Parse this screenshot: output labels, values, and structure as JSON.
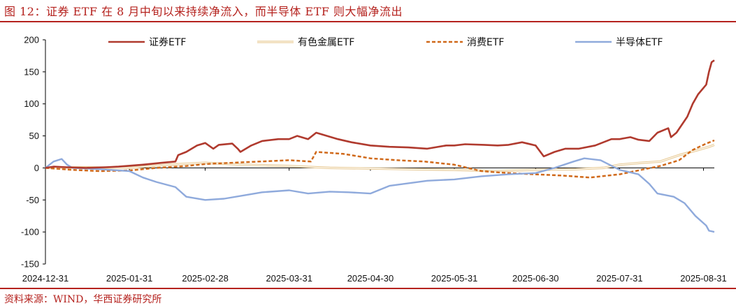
{
  "header": {
    "title": "图 12：证券 ETF 在 8 月中旬以来持续净流入，而半导体 ETF 则大幅净流出"
  },
  "footer": {
    "source": "资料来源：WIND，华西证券研究所"
  },
  "colors": {
    "accent": "#b5221e",
    "securities": "#b03a2e",
    "nonferrous": "#e8c992",
    "consumer": "#d0691a",
    "semiconductor": "#8faadc"
  },
  "chart_data": {
    "type": "line",
    "title": "",
    "xlabel": "",
    "ylabel": "",
    "ylim": [
      -150,
      200
    ],
    "yticks": [
      -150,
      -100,
      -50,
      0,
      50,
      100,
      150,
      200
    ],
    "ytick_labels": [
      "-150",
      "-100",
      "-50",
      "0",
      "50",
      "100",
      "150",
      "200"
    ],
    "xlim": [
      "2024-12-31",
      "2025-09-04"
    ],
    "xticks": [
      "2024-12-31",
      "2025-01-31",
      "2025-02-28",
      "2025-03-31",
      "2025-04-30",
      "2025-05-31",
      "2025-06-30",
      "2025-07-31",
      "2025-08-31"
    ],
    "grid": false,
    "legend_position": "top",
    "series": [
      {
        "name": "证券ETF",
        "style": "solid",
        "points": [
          [
            "2024-12-31",
            0
          ],
          [
            "2025-01-03",
            2
          ],
          [
            "2025-01-08",
            1
          ],
          [
            "2025-01-15",
            0
          ],
          [
            "2025-01-22",
            1
          ],
          [
            "2025-01-27",
            2
          ],
          [
            "2025-02-05",
            5
          ],
          [
            "2025-02-12",
            8
          ],
          [
            "2025-02-17",
            10
          ],
          [
            "2025-02-18",
            20
          ],
          [
            "2025-02-21",
            25
          ],
          [
            "2025-02-25",
            35
          ],
          [
            "2025-02-28",
            39
          ],
          [
            "2025-03-03",
            30
          ],
          [
            "2025-03-05",
            36
          ],
          [
            "2025-03-10",
            38
          ],
          [
            "2025-03-12",
            30
          ],
          [
            "2025-03-13",
            25
          ],
          [
            "2025-03-17",
            35
          ],
          [
            "2025-03-21",
            42
          ],
          [
            "2025-03-27",
            45
          ],
          [
            "2025-03-31",
            45
          ],
          [
            "2025-04-03",
            50
          ],
          [
            "2025-04-07",
            45
          ],
          [
            "2025-04-10",
            55
          ],
          [
            "2025-04-14",
            50
          ],
          [
            "2025-04-18",
            45
          ],
          [
            "2025-04-23",
            40
          ],
          [
            "2025-04-30",
            35
          ],
          [
            "2025-05-07",
            33
          ],
          [
            "2025-05-14",
            32
          ],
          [
            "2025-05-21",
            30
          ],
          [
            "2025-05-28",
            35
          ],
          [
            "2025-05-31",
            35
          ],
          [
            "2025-06-04",
            37
          ],
          [
            "2025-06-11",
            36
          ],
          [
            "2025-06-16",
            35
          ],
          [
            "2025-06-20",
            36
          ],
          [
            "2025-06-25",
            40
          ],
          [
            "2025-06-30",
            35
          ],
          [
            "2025-07-03",
            18
          ],
          [
            "2025-07-07",
            25
          ],
          [
            "2025-07-11",
            30
          ],
          [
            "2025-07-16",
            30
          ],
          [
            "2025-07-22",
            35
          ],
          [
            "2025-07-28",
            45
          ],
          [
            "2025-07-31",
            45
          ],
          [
            "2025-08-04",
            48
          ],
          [
            "2025-08-07",
            44
          ],
          [
            "2025-08-11",
            42
          ],
          [
            "2025-08-14",
            55
          ],
          [
            "2025-08-18",
            62
          ],
          [
            "2025-08-19",
            48
          ],
          [
            "2025-08-21",
            55
          ],
          [
            "2025-08-25",
            80
          ],
          [
            "2025-08-27",
            100
          ],
          [
            "2025-08-29",
            115
          ],
          [
            "2025-09-01",
            130
          ],
          [
            "2025-09-02",
            150
          ],
          [
            "2025-09-03",
            165
          ],
          [
            "2025-09-04",
            168
          ]
        ]
      },
      {
        "name": "有色金属ETF",
        "style": "double",
        "points": [
          [
            "2024-12-31",
            0
          ],
          [
            "2025-01-15",
            1
          ],
          [
            "2025-01-31",
            0
          ],
          [
            "2025-02-14",
            5
          ],
          [
            "2025-02-28",
            8
          ],
          [
            "2025-03-14",
            5
          ],
          [
            "2025-03-31",
            3
          ],
          [
            "2025-04-15",
            0
          ],
          [
            "2025-04-30",
            -1
          ],
          [
            "2025-05-15",
            -2
          ],
          [
            "2025-05-31",
            -3
          ],
          [
            "2025-06-15",
            -5
          ],
          [
            "2025-06-30",
            -3
          ],
          [
            "2025-07-15",
            -2
          ],
          [
            "2025-07-25",
            0
          ],
          [
            "2025-07-31",
            5
          ],
          [
            "2025-08-08",
            8
          ],
          [
            "2025-08-15",
            10
          ],
          [
            "2025-08-22",
            20
          ],
          [
            "2025-08-29",
            28
          ],
          [
            "2025-09-02",
            33
          ],
          [
            "2025-09-04",
            36
          ]
        ]
      },
      {
        "name": "消费ETF",
        "style": "dashed",
        "points": [
          [
            "2024-12-31",
            0
          ],
          [
            "2025-01-10",
            -3
          ],
          [
            "2025-01-20",
            -5
          ],
          [
            "2025-01-31",
            -4
          ],
          [
            "2025-02-10",
            0
          ],
          [
            "2025-02-21",
            3
          ],
          [
            "2025-02-28",
            6
          ],
          [
            "2025-03-10",
            8
          ],
          [
            "2025-03-20",
            10
          ],
          [
            "2025-03-31",
            12
          ],
          [
            "2025-04-08",
            10
          ],
          [
            "2025-04-10",
            25
          ],
          [
            "2025-04-20",
            22
          ],
          [
            "2025-04-30",
            15
          ],
          [
            "2025-05-10",
            12
          ],
          [
            "2025-05-20",
            10
          ],
          [
            "2025-05-31",
            5
          ],
          [
            "2025-06-10",
            -5
          ],
          [
            "2025-06-20",
            -8
          ],
          [
            "2025-06-30",
            -10
          ],
          [
            "2025-07-10",
            -12
          ],
          [
            "2025-07-20",
            -15
          ],
          [
            "2025-07-31",
            -10
          ],
          [
            "2025-08-08",
            -3
          ],
          [
            "2025-08-15",
            3
          ],
          [
            "2025-08-22",
            12
          ],
          [
            "2025-08-27",
            28
          ],
          [
            "2025-09-01",
            38
          ],
          [
            "2025-09-04",
            43
          ]
        ]
      },
      {
        "name": "半导体ETF",
        "style": "solid",
        "points": [
          [
            "2024-12-31",
            0
          ],
          [
            "2025-01-03",
            10
          ],
          [
            "2025-01-06",
            14
          ],
          [
            "2025-01-08",
            5
          ],
          [
            "2025-01-10",
            0
          ],
          [
            "2025-01-20",
            -2
          ],
          [
            "2025-01-31",
            -5
          ],
          [
            "2025-02-05",
            -15
          ],
          [
            "2025-02-10",
            -22
          ],
          [
            "2025-02-17",
            -30
          ],
          [
            "2025-02-21",
            -45
          ],
          [
            "2025-02-28",
            -50
          ],
          [
            "2025-03-07",
            -48
          ],
          [
            "2025-03-14",
            -43
          ],
          [
            "2025-03-21",
            -38
          ],
          [
            "2025-03-31",
            -35
          ],
          [
            "2025-04-07",
            -40
          ],
          [
            "2025-04-15",
            -37
          ],
          [
            "2025-04-22",
            -38
          ],
          [
            "2025-04-30",
            -40
          ],
          [
            "2025-05-07",
            -28
          ],
          [
            "2025-05-14",
            -24
          ],
          [
            "2025-05-21",
            -20
          ],
          [
            "2025-05-31",
            -18
          ],
          [
            "2025-06-10",
            -13
          ],
          [
            "2025-06-20",
            -10
          ],
          [
            "2025-06-30",
            -8
          ],
          [
            "2025-07-07",
            0
          ],
          [
            "2025-07-14",
            10
          ],
          [
            "2025-07-18",
            15
          ],
          [
            "2025-07-24",
            12
          ],
          [
            "2025-07-31",
            -3
          ],
          [
            "2025-08-07",
            -10
          ],
          [
            "2025-08-11",
            -25
          ],
          [
            "2025-08-14",
            -40
          ],
          [
            "2025-08-20",
            -45
          ],
          [
            "2025-08-24",
            -55
          ],
          [
            "2025-08-28",
            -75
          ],
          [
            "2025-09-01",
            -90
          ],
          [
            "2025-09-02",
            -98
          ],
          [
            "2025-09-04",
            -100
          ]
        ]
      }
    ]
  }
}
